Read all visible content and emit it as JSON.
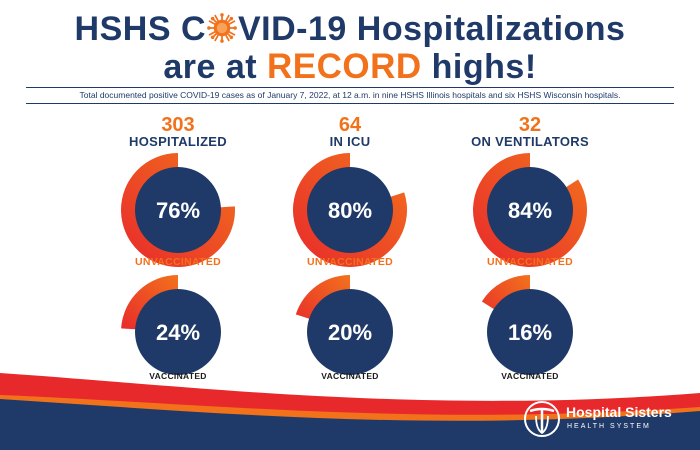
{
  "headline": {
    "line1_before": "HSHS C",
    "line1_after": "VID-19 Hospitalizations",
    "line2_before": "are at ",
    "line2_highlight": "RECORD",
    "line2_after": " highs!"
  },
  "subtitle": "Total documented positive COVID-19 cases as of January 7, 2022, at 12 a.m. in nine HSHS Illinois hospitals and six HSHS Wisconsin hospitals.",
  "columns": [
    {
      "count": "303",
      "label": "HOSPITALIZED",
      "unvaccinated_pct": "76%",
      "unvaccinated_value": 76,
      "vaccinated_pct": "24%",
      "vaccinated_value": 24
    },
    {
      "count": "64",
      "label": "IN ICU",
      "unvaccinated_pct": "80%",
      "unvaccinated_value": 80,
      "vaccinated_pct": "20%",
      "vaccinated_value": 20
    },
    {
      "count": "32",
      "label": "ON VENTILATORS",
      "unvaccinated_pct": "84%",
      "unvaccinated_value": 84,
      "vaccinated_pct": "16%",
      "vaccinated_value": 16
    }
  ],
  "status_labels": {
    "unvaccinated": "UNVACCINATED",
    "vaccinated": "VACCINATED"
  },
  "brand": {
    "name": "Hospital Sisters",
    "sub": "HEALTH SYSTEM"
  },
  "colors": {
    "navy": "#1f3a68",
    "orange": "#f2721c",
    "red": "#e8292c"
  },
  "icons": [
    "virus-icon",
    "hshs-cross-logo-icon"
  ]
}
